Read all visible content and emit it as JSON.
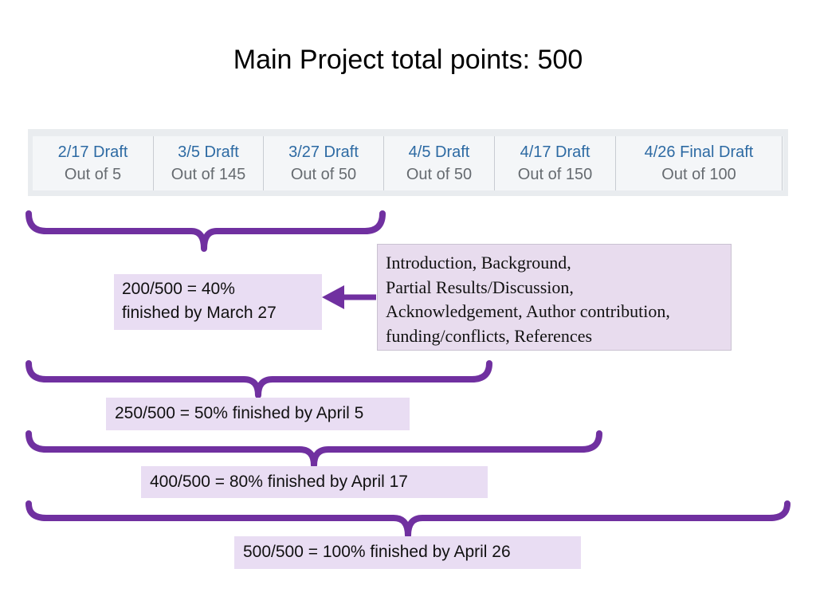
{
  "title": "Main Project total points:  500",
  "accent_color": "#7030a0",
  "columns": [
    {
      "title": "2/17 Draft",
      "sub": "Out of 5"
    },
    {
      "title": "3/5 Draft",
      "sub": "Out of 145"
    },
    {
      "title": "3/27 Draft",
      "sub": "Out of 50"
    },
    {
      "title": "4/5 Draft",
      "sub": "Out of 50"
    },
    {
      "title": "4/17 Draft",
      "sub": "Out of 150"
    },
    {
      "title": "4/26 Final Draft",
      "sub": "Out of 100"
    }
  ],
  "sections_note": {
    "lines": [
      "Introduction, Background,",
      "Partial Results/Discussion,",
      "Acknowledgement, Author contribution,",
      "funding/conflicts, References"
    ]
  },
  "milestones": [
    {
      "lines": [
        "200/500 = 40%",
        "finished by March 27"
      ]
    },
    {
      "lines": [
        "250/500 = 50% finished by April 5"
      ]
    },
    {
      "lines": [
        "400/500 = 80% finished by April 17"
      ]
    },
    {
      "lines": [
        "500/500 = 100% finished by April 26"
      ]
    }
  ]
}
